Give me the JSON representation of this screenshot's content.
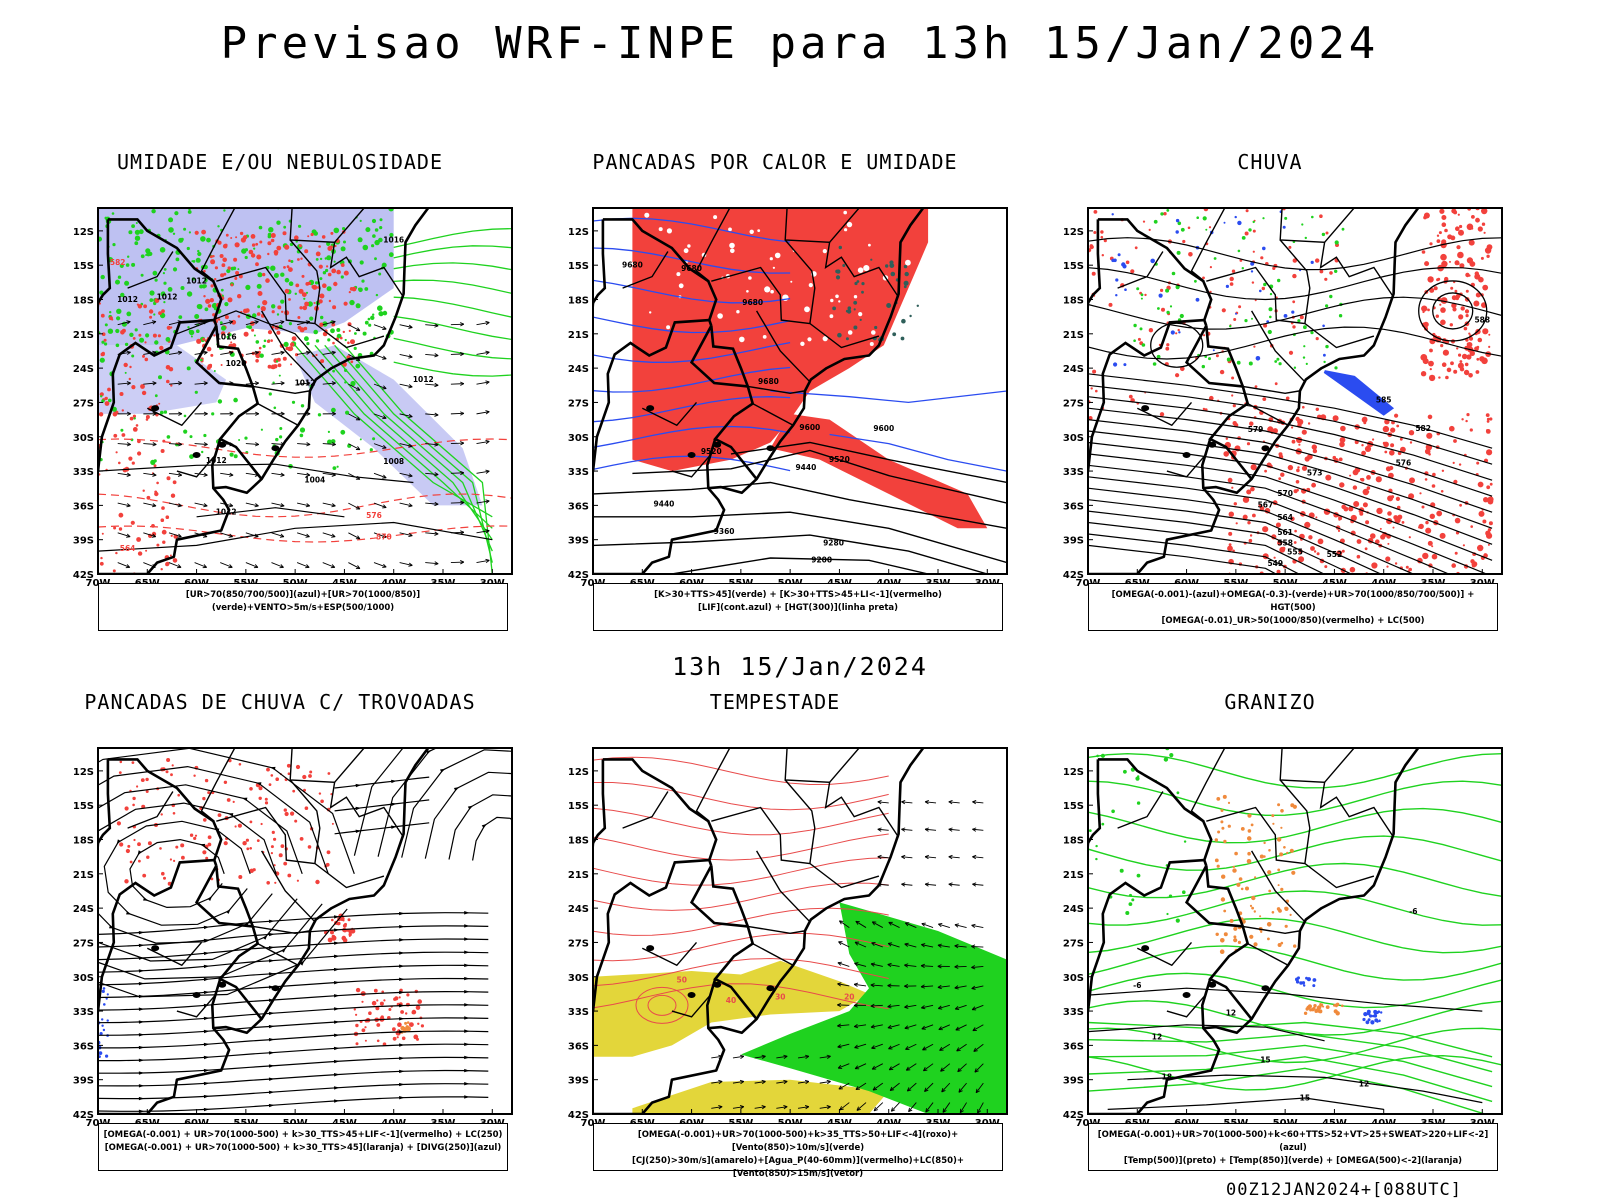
{
  "title": "Previsao WRF-INPE  para 13h 15/Jan/2024",
  "mid_date": "13h 15/Jan/2024",
  "footer": "00Z12JAN2024+[088UTC]",
  "axes": {
    "lat_labels": [
      "12S",
      "15S",
      "18S",
      "21S",
      "24S",
      "27S",
      "30S",
      "33S",
      "36S",
      "39S",
      "42S"
    ],
    "lon_labels": [
      "70W",
      "65W",
      "60W",
      "55W",
      "50W",
      "45W",
      "40W",
      "35W",
      "30W"
    ]
  },
  "colors": {
    "red": "#f2413c",
    "green": "#1fd21f",
    "blue": "#2b4cf0",
    "lavender": "#a3a6ec",
    "yellow": "#e3d63a",
    "orange": "#f08a3c",
    "darkgreen": "#2f5f5a"
  },
  "panels": [
    {
      "title": "UMIDADE E/OU NEBULOSIDADE",
      "legend": [
        "[UR>70(850/700/500)](azul)+[UR>70(1000/850)](verde)+VENTO>5m/s+ESP(500/1000)"
      ],
      "contour_labels": [
        "1016",
        "1012",
        "1012",
        "1012",
        "1016",
        "1020",
        "1012",
        "1012",
        "1012",
        "1008",
        "1004",
        "1012",
        "576",
        "570",
        "564",
        "582"
      ]
    },
    {
      "title": "PANCADAS POR CALOR E UMIDADE",
      "legend": [
        "[K>30+TTS>45](verde) + [K>30+TTS>45+LI<-1](vermelho)",
        "[LIF](cont.azul) + [HGT(300)](linha preta)"
      ],
      "contour_labels": [
        "9680",
        "9680",
        "9680",
        "9680",
        "9600",
        "9600",
        "9520",
        "9520",
        "9440",
        "9440",
        "9360",
        "9280",
        "9200"
      ]
    },
    {
      "title": "CHUVA",
      "legend": [
        "[OMEGA(-0.001)-(azul)+OMEGA(-0.3)-(verde)+UR>70(1000/850/700/500)] + HGT(500)",
        "[OMEGA(-0.01)_UR>50(1000/850)(vermelho) + LC(500)"
      ],
      "contour_labels": [
        "588",
        "585",
        "579",
        "573",
        "570",
        "567",
        "564",
        "561",
        "558",
        "555",
        "552",
        "549",
        "582",
        "576"
      ]
    },
    {
      "title": "PANCADAS DE CHUVA C/ TROVOADAS",
      "legend": [
        "[OMEGA(-0.001) + UR>70(1000-500) + k>30_TTS>45+LIF<-1](vermelho) + LC(250)",
        "[OMEGA(-0.001) + UR>70(1000-500) + k>30_TTS>45](laranja) + [DIVG(250)](azul)"
      ],
      "contour_labels": []
    },
    {
      "title": "TEMPESTADE",
      "legend": [
        "[OMEGA(-0.001)+UR>70(1000-500)+k>35_TTS>50+LIF<-4](roxo)+[Vento(850)>10m/s](verde)",
        "[CJ(250)>30m/s](amarelo)+[Agua_P(40-60mm)](vermelho)+LC(850)+[Vento(850)>15m/s](vetor)"
      ],
      "contour_labels": [
        "50",
        "40",
        "30",
        "20"
      ]
    },
    {
      "title": "GRANIZO",
      "legend": [
        "[OMEGA(-0.001)+UR>70(1000-500)+k<60+TTS>52+VT>25+SWEAT>220+LIF<-2](azul)",
        "[Temp(500)](preto) + [Temp(850)](verde) + [OMEGA(500)<-2](laranja)"
      ],
      "contour_labels": [
        "12",
        "12",
        "15",
        "12",
        "18",
        "15",
        "-6",
        "-6"
      ]
    }
  ]
}
